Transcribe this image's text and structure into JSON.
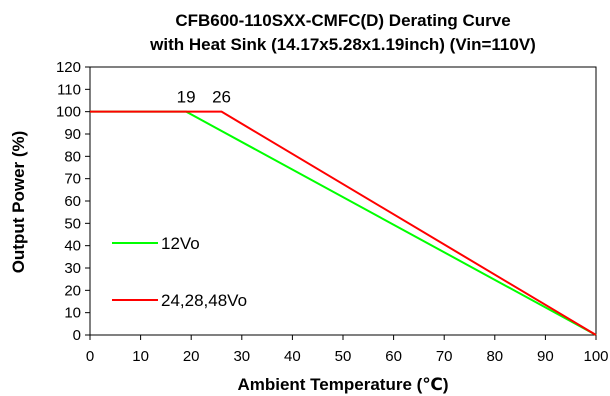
{
  "chart_data": {
    "type": "line",
    "title_lines": [
      "CFB600-110SXX-CMFC(D)  Derating Curve",
      "with Heat Sink (14.17x5.28x1.19inch) (Vin=110V)"
    ],
    "xlabel": "Ambient Temperature (℃)",
    "ylabel": "Output Power (%)",
    "xlim": [
      0,
      100
    ],
    "ylim": [
      0,
      120
    ],
    "xticks": [
      0,
      10,
      20,
      30,
      40,
      50,
      60,
      70,
      80,
      90,
      100
    ],
    "yticks": [
      0,
      10,
      20,
      30,
      40,
      50,
      60,
      70,
      80,
      90,
      100,
      110,
      120
    ],
    "grid": false,
    "series": [
      {
        "name": "12Vo",
        "color": "#00ff00",
        "x": [
          0,
          19,
          100
        ],
        "y": [
          100,
          100,
          0
        ]
      },
      {
        "name": "24,28,48Vo",
        "color": "#ff0000",
        "x": [
          0,
          26,
          100
        ],
        "y": [
          100,
          100,
          0
        ]
      }
    ],
    "annotations": [
      {
        "text": "19",
        "x": 19,
        "y": 100
      },
      {
        "text": "26",
        "x": 26,
        "y": 100
      }
    ]
  }
}
